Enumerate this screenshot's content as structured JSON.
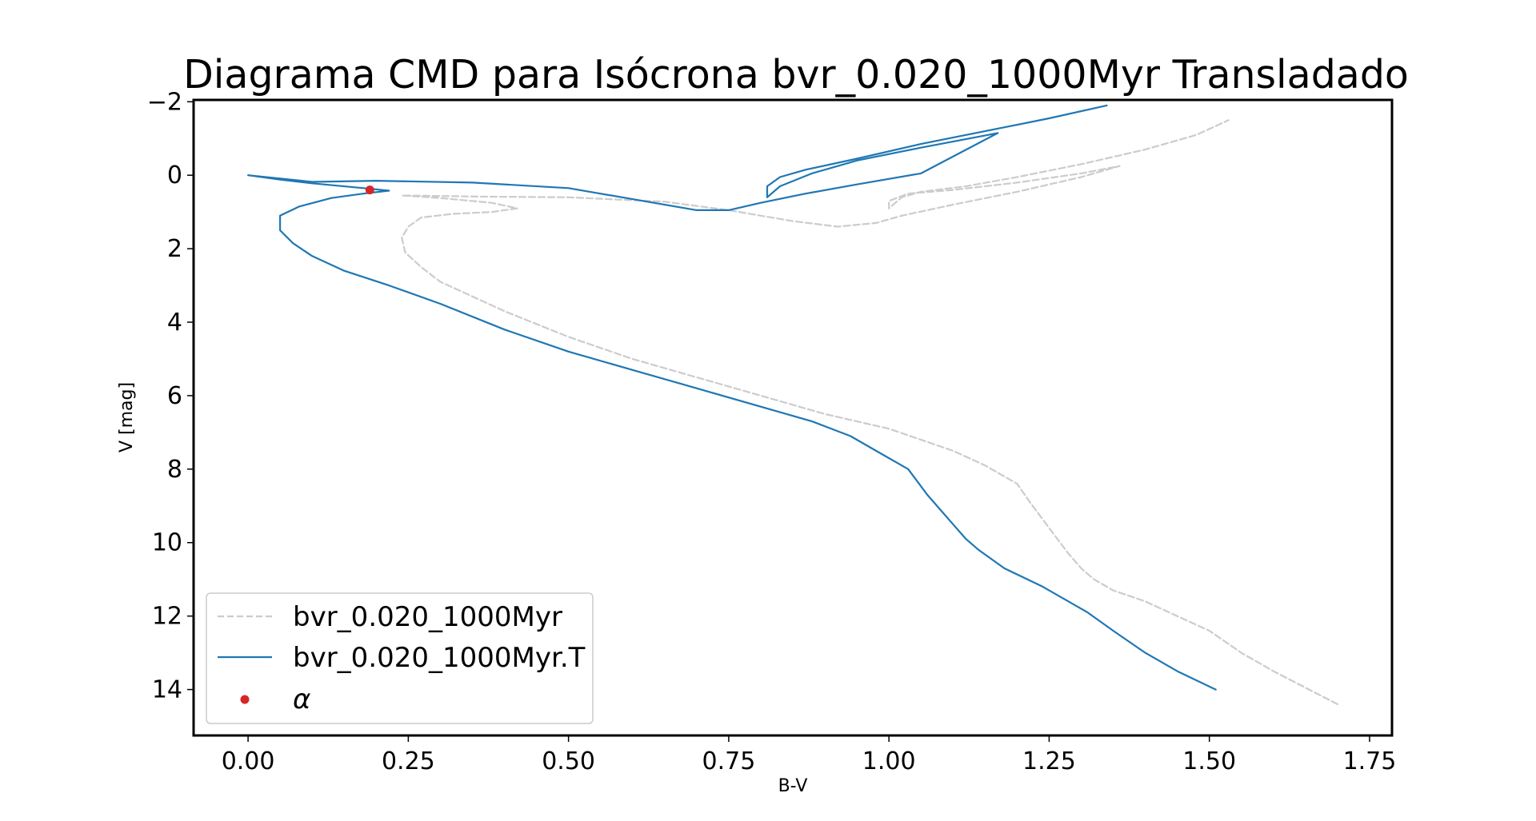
{
  "chart_data": {
    "type": "line",
    "title": "Diagrama CMD para Isócrona bvr_0.020_1000Myr Transladado",
    "xlabel": "B-V",
    "ylabel": "V [mag]",
    "xlim": [
      -0.085,
      1.785
    ],
    "ylim": [
      15.25,
      -2.05
    ],
    "y_inverted": true,
    "grid": false,
    "legend_position": "lower-left",
    "xticks": [
      0.0,
      0.25,
      0.5,
      0.75,
      1.0,
      1.25,
      1.5,
      1.75
    ],
    "xtick_labels": [
      "0.00",
      "0.25",
      "0.50",
      "0.75",
      "1.00",
      "1.25",
      "1.50",
      "1.75"
    ],
    "yticks": [
      -2,
      0,
      2,
      4,
      6,
      8,
      10,
      12,
      14
    ],
    "ytick_labels": [
      "−2",
      "0",
      "2",
      "4",
      "6",
      "8",
      "10",
      "12",
      "14"
    ],
    "series": [
      {
        "name": "bvr_0.020_1000Myr",
        "style": "dashed",
        "color": "#cccccc",
        "points": [
          [
            1.7,
            14.4
          ],
          [
            1.6,
            13.5
          ],
          [
            1.55,
            13.0
          ],
          [
            1.5,
            12.4
          ],
          [
            1.45,
            12.0
          ],
          [
            1.4,
            11.6
          ],
          [
            1.35,
            11.3
          ],
          [
            1.32,
            11.0
          ],
          [
            1.3,
            10.7
          ],
          [
            1.28,
            10.3
          ],
          [
            1.25,
            9.6
          ],
          [
            1.22,
            8.9
          ],
          [
            1.2,
            8.4
          ],
          [
            1.15,
            7.9
          ],
          [
            1.1,
            7.5
          ],
          [
            1.05,
            7.2
          ],
          [
            1.0,
            6.9
          ],
          [
            0.9,
            6.5
          ],
          [
            0.8,
            6.0
          ],
          [
            0.7,
            5.5
          ],
          [
            0.6,
            5.0
          ],
          [
            0.5,
            4.4
          ],
          [
            0.4,
            3.7
          ],
          [
            0.3,
            2.9
          ],
          [
            0.27,
            2.5
          ],
          [
            0.245,
            2.1
          ],
          [
            0.24,
            1.7
          ],
          [
            0.25,
            1.4
          ],
          [
            0.27,
            1.15
          ],
          [
            0.32,
            1.05
          ],
          [
            0.38,
            1.0
          ],
          [
            0.42,
            0.9
          ],
          [
            0.38,
            0.75
          ],
          [
            0.3,
            0.62
          ],
          [
            0.24,
            0.55
          ],
          [
            0.36,
            0.58
          ],
          [
            0.5,
            0.6
          ],
          [
            0.65,
            0.72
          ],
          [
            0.75,
            0.95
          ],
          [
            0.85,
            1.25
          ],
          [
            0.92,
            1.4
          ],
          [
            0.98,
            1.3
          ],
          [
            1.02,
            1.1
          ],
          [
            1.1,
            0.8
          ],
          [
            1.2,
            0.45
          ],
          [
            1.3,
            0.05
          ],
          [
            1.36,
            -0.25
          ],
          [
            1.3,
            -0.05
          ],
          [
            1.2,
            0.2
          ],
          [
            1.1,
            0.4
          ],
          [
            1.03,
            0.5
          ],
          [
            1.0,
            0.7
          ],
          [
            1.0,
            0.9
          ],
          [
            1.02,
            0.6
          ],
          [
            1.05,
            0.45
          ],
          [
            1.12,
            0.3
          ],
          [
            1.2,
            0.05
          ],
          [
            1.3,
            -0.3
          ],
          [
            1.4,
            -0.7
          ],
          [
            1.48,
            -1.1
          ],
          [
            1.53,
            -1.5
          ]
        ]
      },
      {
        "name": "bvr_0.020_1000Myr.T",
        "style": "solid",
        "color": "#1f77b4",
        "points": [
          [
            1.51,
            14.0
          ],
          [
            1.45,
            13.5
          ],
          [
            1.4,
            13.0
          ],
          [
            1.35,
            12.4
          ],
          [
            1.31,
            11.9
          ],
          [
            1.28,
            11.6
          ],
          [
            1.24,
            11.2
          ],
          [
            1.18,
            10.7
          ],
          [
            1.14,
            10.2
          ],
          [
            1.12,
            9.9
          ],
          [
            1.1,
            9.5
          ],
          [
            1.08,
            9.1
          ],
          [
            1.06,
            8.7
          ],
          [
            1.03,
            8.0
          ],
          [
            0.99,
            7.6
          ],
          [
            0.94,
            7.1
          ],
          [
            0.88,
            6.7
          ],
          [
            0.8,
            6.3
          ],
          [
            0.7,
            5.8
          ],
          [
            0.6,
            5.3
          ],
          [
            0.5,
            4.8
          ],
          [
            0.4,
            4.2
          ],
          [
            0.3,
            3.5
          ],
          [
            0.22,
            3.0
          ],
          [
            0.15,
            2.6
          ],
          [
            0.1,
            2.2
          ],
          [
            0.07,
            1.85
          ],
          [
            0.05,
            1.5
          ],
          [
            0.05,
            1.1
          ],
          [
            0.08,
            0.85
          ],
          [
            0.13,
            0.62
          ],
          [
            0.18,
            0.5
          ],
          [
            0.22,
            0.42
          ],
          [
            0.18,
            0.35
          ],
          [
            0.1,
            0.22
          ],
          [
            0.05,
            0.12
          ],
          [
            0.0,
            0.0
          ],
          [
            0.1,
            0.18
          ],
          [
            0.2,
            0.15
          ],
          [
            0.35,
            0.2
          ],
          [
            0.5,
            0.35
          ],
          [
            0.6,
            0.65
          ],
          [
            0.7,
            0.95
          ],
          [
            0.75,
            0.95
          ],
          [
            0.8,
            0.75
          ],
          [
            0.87,
            0.5
          ],
          [
            0.95,
            0.25
          ],
          [
            1.05,
            -0.05
          ],
          [
            1.17,
            -1.15
          ],
          [
            1.05,
            -0.75
          ],
          [
            0.95,
            -0.4
          ],
          [
            0.88,
            -0.05
          ],
          [
            0.83,
            0.3
          ],
          [
            0.81,
            0.6
          ],
          [
            0.81,
            0.3
          ],
          [
            0.83,
            0.05
          ],
          [
            0.87,
            -0.15
          ],
          [
            0.95,
            -0.45
          ],
          [
            1.05,
            -0.85
          ],
          [
            1.15,
            -1.2
          ],
          [
            1.25,
            -1.55
          ],
          [
            1.34,
            -1.9
          ]
        ]
      }
    ],
    "marker": {
      "name": "α",
      "color": "#d62728",
      "x": 0.19,
      "y": 0.4
    }
  }
}
